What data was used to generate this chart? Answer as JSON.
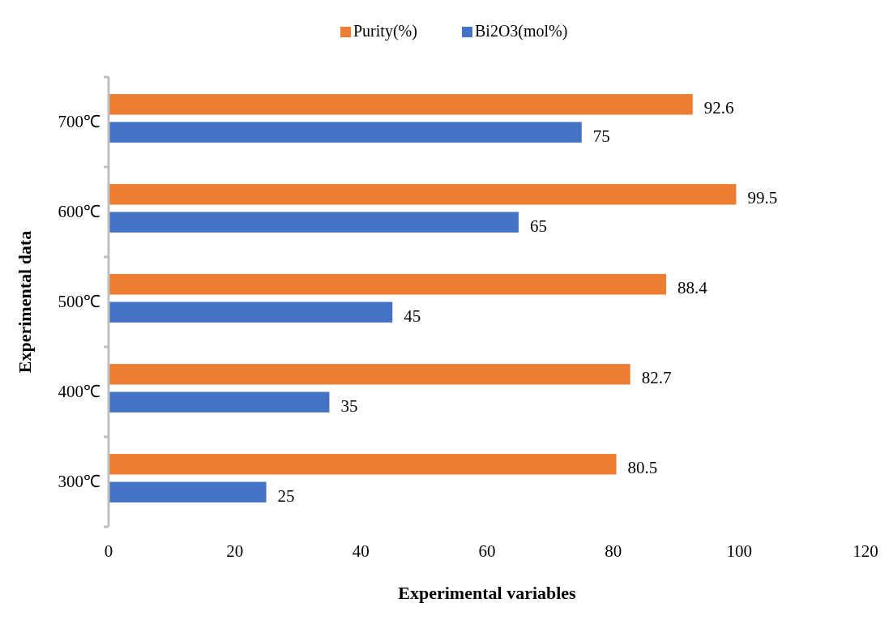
{
  "chart_data": {
    "type": "bar",
    "orientation": "horizontal",
    "xlabel": "Experimental variables",
    "ylabel": "Experimental data",
    "categories": [
      "700℃",
      "600℃",
      "500℃",
      "400℃",
      "300℃"
    ],
    "series": [
      {
        "name": "Purity(%)",
        "color": "#ed7d31",
        "values": [
          92.6,
          99.5,
          88.4,
          82.7,
          80.5
        ]
      },
      {
        "name": "Bi2O3(mol%)",
        "color": "#4472c4",
        "values": [
          75,
          65,
          45,
          35,
          25
        ]
      }
    ],
    "xlim": [
      0,
      120
    ],
    "xticks": [
      0,
      20,
      40,
      60,
      80,
      100,
      120
    ],
    "data_labels": true,
    "grid": false,
    "legend": "top"
  }
}
